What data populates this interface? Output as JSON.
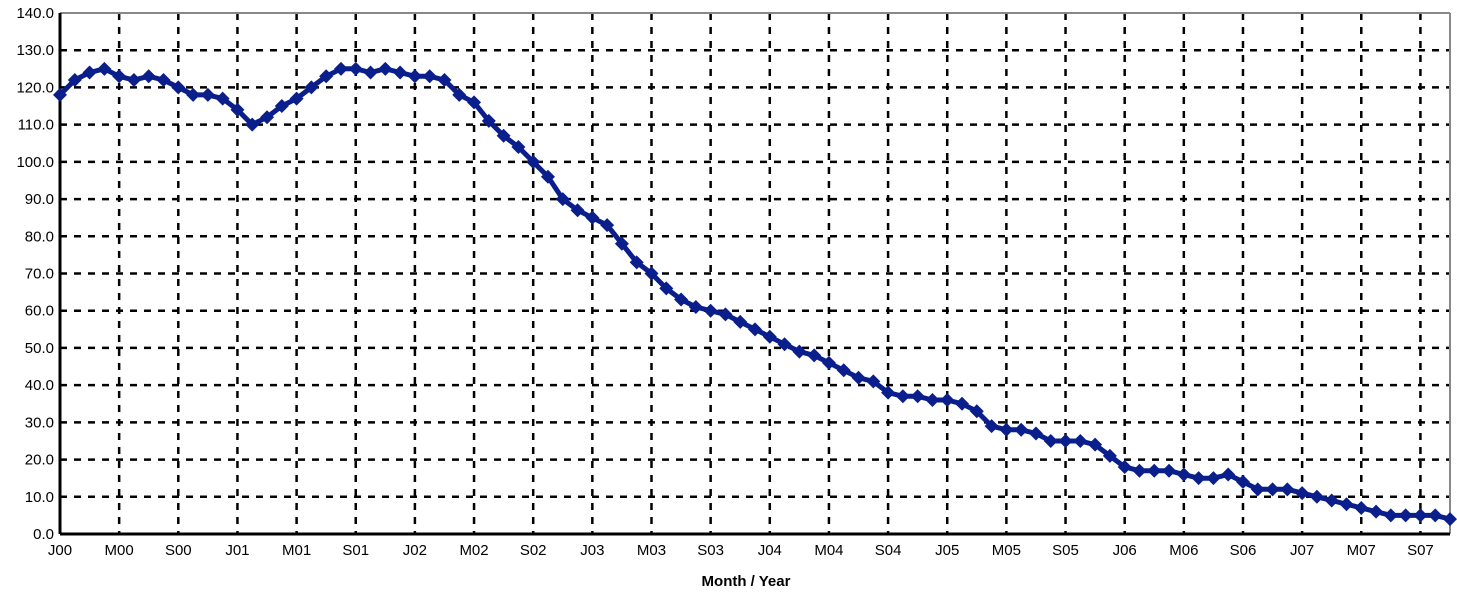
{
  "chart_data": {
    "type": "line",
    "title": "",
    "xlabel": "Month / Year",
    "ylabel": "",
    "ylim": [
      0,
      140
    ],
    "yticks": [
      "0.0",
      "10.0",
      "20.0",
      "30.0",
      "40.0",
      "50.0",
      "60.0",
      "70.0",
      "80.0",
      "90.0",
      "100.0",
      "110.0",
      "120.0",
      "130.0",
      "140.0"
    ],
    "xtick_labels": [
      "J00",
      "M00",
      "S00",
      "J01",
      "M01",
      "S01",
      "J02",
      "M02",
      "S02",
      "J03",
      "M03",
      "S03",
      "J04",
      "M04",
      "S04",
      "J05",
      "M05",
      "S05",
      "J06",
      "M06",
      "S06",
      "J07",
      "M07",
      "S07"
    ],
    "grid": true,
    "legend": "none",
    "colors": {
      "line": "#0a1e8c",
      "grid": "#000000",
      "frame": "#888888"
    },
    "series": [
      {
        "values": [
          118,
          122,
          124,
          125,
          123,
          122,
          123,
          122,
          120,
          118,
          118,
          117,
          114,
          110,
          112,
          115,
          117,
          120,
          123,
          125,
          125,
          124,
          125,
          124,
          123,
          123,
          122,
          118,
          116,
          111,
          107,
          104,
          100,
          96,
          90,
          87,
          85,
          83,
          78,
          73,
          70,
          66,
          63,
          61,
          60,
          59,
          57,
          55,
          53,
          51,
          49,
          48,
          46,
          44,
          42,
          41,
          38,
          37,
          37,
          36,
          36,
          35,
          33,
          29,
          28,
          28,
          27,
          25,
          25,
          25,
          24,
          21,
          18,
          17,
          17,
          17,
          16,
          15,
          15,
          16,
          14,
          12,
          12,
          12,
          11,
          10,
          9,
          8,
          7,
          6,
          5,
          5,
          5,
          5,
          4
        ]
      }
    ]
  }
}
